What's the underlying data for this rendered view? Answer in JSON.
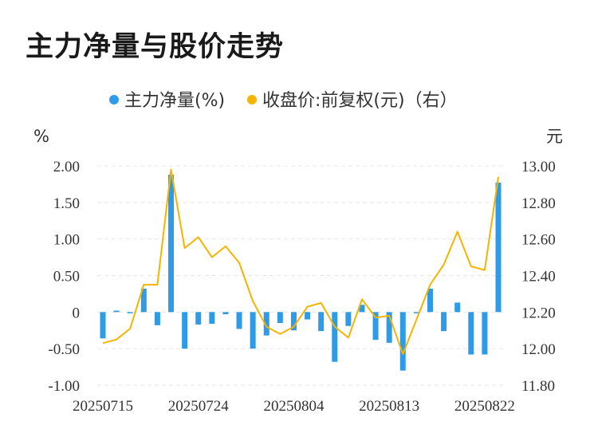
{
  "title": "主力净量与股价走势",
  "colors": {
    "bar": "#2f9be6",
    "line": "#f4b400",
    "grid": "#e6e6e6",
    "text": "#333333"
  },
  "chart_data": {
    "type": "bar+line",
    "title": "主力净量与股价走势",
    "legend": [
      "主力净量(%)",
      "收盘价:前复权(元)（右）"
    ],
    "legend_position": "top-center",
    "y_left_unit": "%",
    "y_right_unit": "元",
    "y_left_range": [
      -1.0,
      2.0
    ],
    "y_right_range": [
      11.8,
      13.0
    ],
    "y_left_ticks": [
      "2.00",
      "1.50",
      "1.00",
      "0.50",
      "0",
      "-0.50",
      "-1.00"
    ],
    "y_right_ticks": [
      "13.00",
      "12.80",
      "12.60",
      "12.40",
      "12.20",
      "12.00",
      "11.80"
    ],
    "x_tick_labels": [
      "20250715",
      "20250724",
      "20250804",
      "20250813",
      "20250822"
    ],
    "x_tick_indices": [
      0,
      7,
      14,
      21,
      28
    ],
    "grid": true,
    "series": [
      {
        "name": "主力净量(%)",
        "axis": "left",
        "type": "bar",
        "values": [
          -0.36,
          0.02,
          0.0,
          0.32,
          -0.18,
          1.88,
          -0.5,
          -0.17,
          -0.16,
          -0.03,
          -0.23,
          -0.5,
          -0.32,
          -0.15,
          -0.25,
          -0.1,
          -0.26,
          -0.68,
          -0.19,
          0.1,
          -0.38,
          -0.42,
          -0.8,
          -0.01,
          0.32,
          -0.26,
          0.13,
          -0.58,
          -0.58,
          1.77
        ]
      },
      {
        "name": "收盘价:前复权(元)（右）",
        "axis": "right",
        "type": "line",
        "values": [
          12.03,
          12.05,
          12.11,
          12.35,
          12.35,
          12.98,
          12.55,
          12.61,
          12.5,
          12.56,
          12.47,
          12.26,
          12.12,
          12.08,
          12.12,
          12.23,
          12.25,
          12.12,
          12.06,
          12.27,
          12.17,
          12.18,
          11.97,
          12.16,
          12.35,
          12.46,
          12.64,
          12.45,
          12.43,
          12.94
        ]
      }
    ]
  }
}
